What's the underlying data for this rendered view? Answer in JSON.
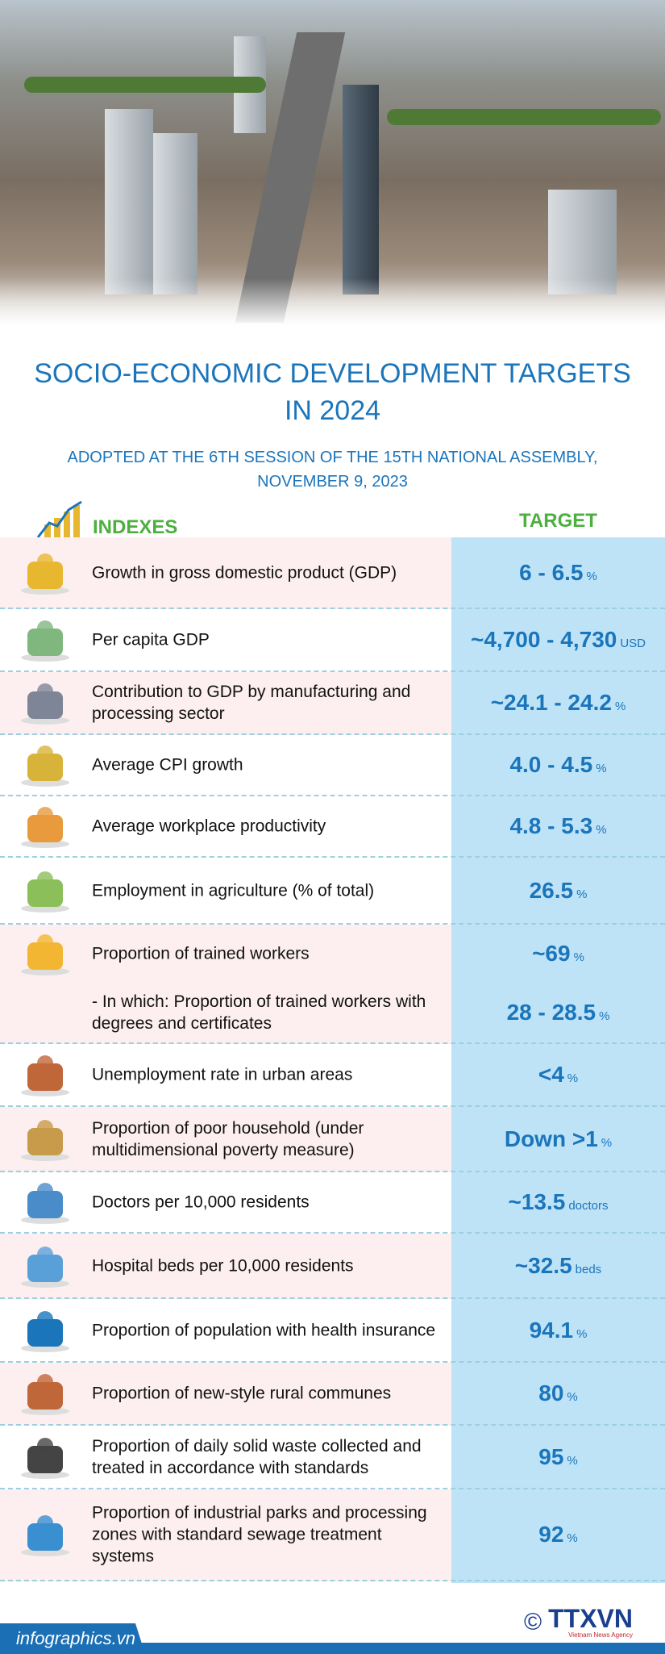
{
  "title_line1": "SOCIO-ECONOMIC DEVELOPMENT TARGETS",
  "title_line2": "IN 2024",
  "subtitle_line1": "ADOPTED AT THE 6TH SESSION OF THE 15TH NATIONAL ASSEMBLY,",
  "subtitle_line2": "NOVEMBER 9, 2023",
  "header": {
    "indexes": "INDEXES",
    "target": "TARGET"
  },
  "rows": [
    {
      "label": "Growth in gross domestic product (GDP)",
      "value": "6 - 6.5",
      "unit": "%",
      "icon": "money-bag-icon"
    },
    {
      "label": "Per capita GDP",
      "value": "~4,700 - 4,730",
      "unit": "USD",
      "icon": "cash-stack-icon"
    },
    {
      "label": "Contribution to GDP by manufacturing and processing sector",
      "value": "~24.1 - 24.2",
      "unit": "%",
      "icon": "factory-conveyor-icon"
    },
    {
      "label": "Average CPI growth",
      "value": "4.0 - 4.5",
      "unit": "%",
      "icon": "cpi-cart-icon"
    },
    {
      "label": "Average workplace productivity",
      "value": "4.8 - 5.3",
      "unit": "%",
      "icon": "worker-chart-icon"
    },
    {
      "label": "Employment in agriculture (% of total)",
      "value": "26.5",
      "unit": "%",
      "icon": "farmer-icon"
    },
    {
      "label": "Proportion of trained workers",
      "value": "~69",
      "unit": "%",
      "icon": "engineer-icon"
    },
    {
      "label": "- In which: Proportion of trained workers with degrees and certificates",
      "value": "28 - 28.5",
      "unit": "%",
      "icon": ""
    },
    {
      "label": "Unemployment rate in urban areas",
      "value": "<4",
      "unit": "%",
      "icon": "unemployed-people-icon"
    },
    {
      "label": "Proportion of poor household (under multidimensional poverty measure)",
      "value": "Down >1",
      "unit": "%",
      "icon": "hut-icon"
    },
    {
      "label": "Doctors per 10,000 residents",
      "value": "~13.5",
      "unit": "doctors",
      "icon": "doctor-icon"
    },
    {
      "label": "Hospital beds per 10,000 residents",
      "value": "~32.5",
      "unit": "beds",
      "icon": "hospital-bed-icon"
    },
    {
      "label": "Proportion of population with health insurance",
      "value": "94.1",
      "unit": "%",
      "icon": "health-insurance-icon"
    },
    {
      "label": "Proportion of new-style rural communes",
      "value": "80",
      "unit": "%",
      "icon": "rural-house-icon"
    },
    {
      "label": "Proportion of daily solid waste collected and treated in accordance with standards",
      "value": "95",
      "unit": "%",
      "icon": "garbage-bags-icon"
    },
    {
      "label": "Proportion of industrial parks and processing zones with standard sewage treatment systems",
      "value": "92",
      "unit": "%",
      "icon": "sewage-pipe-icon"
    }
  ],
  "footer": {
    "site": "infographics.vn",
    "copyright": "©",
    "logo": "TTXVN",
    "agency": "Vietnam News Agency"
  },
  "colors": {
    "title": "#1b75bb",
    "header": "#4caf3f",
    "target_column": "#bee3f7",
    "row_alt": "#fdeff0"
  }
}
